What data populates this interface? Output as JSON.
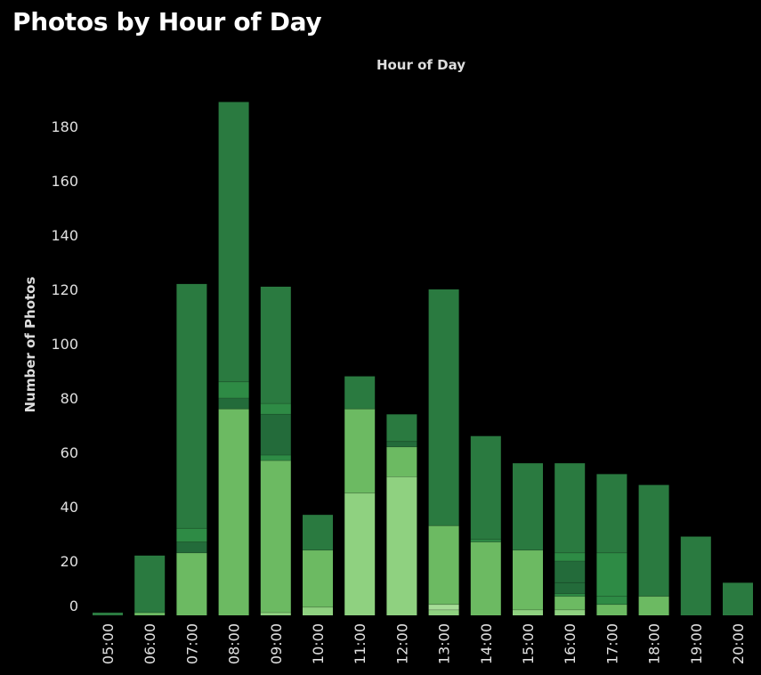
{
  "header": {
    "title": "Photos by Hour of Day"
  },
  "chart_data": {
    "type": "bar",
    "stacked": true,
    "title": "Photos by Hour of Day",
    "xlabel": "Hour of Day",
    "ylabel": "Number of Photos",
    "ylim": [
      0,
      189
    ],
    "yticks": [
      0,
      20,
      40,
      60,
      80,
      100,
      120,
      140,
      160,
      180
    ],
    "categories": [
      "05:00",
      "06:00",
      "07:00",
      "08:00",
      "09:00",
      "10:00",
      "11:00",
      "12:00",
      "13:00",
      "14:00",
      "15:00",
      "16:00",
      "17:00",
      "18:00",
      "19:00",
      "20:00"
    ],
    "segment_colors": [
      "#8fd180",
      "#6cba62",
      "#2e8b45",
      "#236b3a",
      "#2a7a40"
    ],
    "stacks": [
      [
        {
          "v": 1,
          "c": "#2a7a40"
        }
      ],
      [
        {
          "v": 1,
          "c": "#6cba62"
        },
        {
          "v": 21,
          "c": "#2a7a40"
        }
      ],
      [
        {
          "v": 23,
          "c": "#6cba62"
        },
        {
          "v": 4,
          "c": "#236b3a"
        },
        {
          "v": 5,
          "c": "#2e8b45"
        },
        {
          "v": 90,
          "c": "#2a7a40"
        }
      ],
      [
        {
          "v": 76,
          "c": "#6cba62"
        },
        {
          "v": 4,
          "c": "#236b3a"
        },
        {
          "v": 6,
          "c": "#2e8b45"
        },
        {
          "v": 103,
          "c": "#2a7a40"
        }
      ],
      [
        {
          "v": 1,
          "c": "#8fd180"
        },
        {
          "v": 56,
          "c": "#6cba62"
        },
        {
          "v": 2,
          "c": "#2e8b45"
        },
        {
          "v": 15,
          "c": "#236b3a"
        },
        {
          "v": 4,
          "c": "#2e8b45"
        },
        {
          "v": 43,
          "c": "#2a7a40"
        }
      ],
      [
        {
          "v": 3,
          "c": "#8fd180"
        },
        {
          "v": 21,
          "c": "#6cba62"
        },
        {
          "v": 13,
          "c": "#2a7a40"
        }
      ],
      [
        {
          "v": 45,
          "c": "#8fd180"
        },
        {
          "v": 31,
          "c": "#6cba62"
        },
        {
          "v": 12,
          "c": "#2a7a40"
        }
      ],
      [
        {
          "v": 51,
          "c": "#8fd180"
        },
        {
          "v": 11,
          "c": "#6cba62"
        },
        {
          "v": 2,
          "c": "#236b3a"
        },
        {
          "v": 10,
          "c": "#2a7a40"
        }
      ],
      [
        {
          "v": 2,
          "c": "#8fd180"
        },
        {
          "v": 2,
          "c": "#a6dc97"
        },
        {
          "v": 29,
          "c": "#6cba62"
        },
        {
          "v": 87,
          "c": "#2a7a40"
        }
      ],
      [
        {
          "v": 27,
          "c": "#6cba62"
        },
        {
          "v": 1,
          "c": "#2e8b45"
        },
        {
          "v": 38,
          "c": "#2a7a40"
        }
      ],
      [
        {
          "v": 2,
          "c": "#8fd180"
        },
        {
          "v": 22,
          "c": "#6cba62"
        },
        {
          "v": 32,
          "c": "#2a7a40"
        }
      ],
      [
        {
          "v": 2,
          "c": "#8fd180"
        },
        {
          "v": 5,
          "c": "#6cba62"
        },
        {
          "v": 1,
          "c": "#2e8b45"
        },
        {
          "v": 4,
          "c": "#236b3a"
        },
        {
          "v": 8,
          "c": "#236b3a"
        },
        {
          "v": 3,
          "c": "#2e8b45"
        },
        {
          "v": 33,
          "c": "#2a7a40"
        }
      ],
      [
        {
          "v": 4,
          "c": "#6cba62"
        },
        {
          "v": 3,
          "c": "#2e8b45"
        },
        {
          "v": 16,
          "c": "#2e8b45"
        },
        {
          "v": 29,
          "c": "#2a7a40"
        }
      ],
      [
        {
          "v": 7,
          "c": "#6cba62"
        },
        {
          "v": 41,
          "c": "#2a7a40"
        }
      ],
      [
        {
          "v": 29,
          "c": "#2a7a40"
        }
      ],
      [
        {
          "v": 12,
          "c": "#2a7a40"
        }
      ]
    ]
  }
}
